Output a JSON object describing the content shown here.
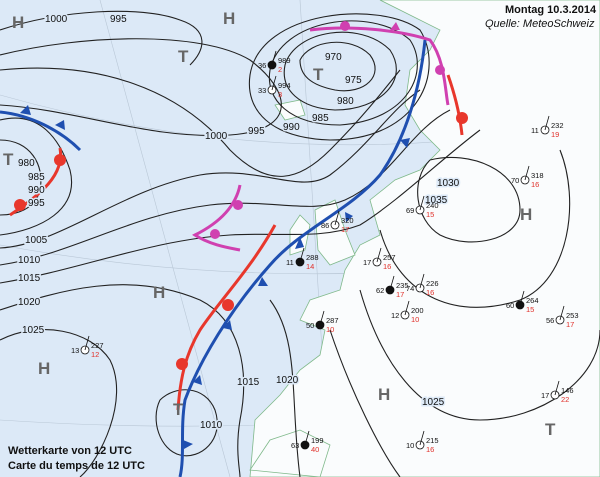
{
  "header": {
    "date": "Montag 10.3.2014",
    "source": "Quelle: MeteoSchweiz"
  },
  "footer": {
    "caption_de": "Wetterkarte von 12 UTC",
    "caption_fr": "Carte du temps de 12 UTC"
  },
  "pressure_centers": [
    "H",
    "T",
    "T",
    "T",
    "H",
    "H",
    "T",
    "H",
    "H",
    "T",
    "H"
  ],
  "isobar_labels": [
    "1000",
    "995",
    "970",
    "975",
    "980",
    "985",
    "990",
    "995",
    "1000",
    "980",
    "985",
    "990",
    "995",
    "1005",
    "1010",
    "1015",
    "1020",
    "1025",
    "1030",
    "1035",
    "1015",
    "1020",
    "1010",
    "1025"
  ],
  "stations": [
    {
      "p": "989",
      "t": "2",
      "w": "36"
    },
    {
      "p": "994",
      "t": "3",
      "w": "33"
    },
    {
      "p": "320",
      "t": "17",
      "w": "86"
    },
    {
      "p": "288",
      "t": "14",
      "w": "11"
    },
    {
      "p": "257",
      "t": "16",
      "w": "17"
    },
    {
      "p": "240",
      "t": "15",
      "w": "69"
    },
    {
      "p": "235",
      "t": "17",
      "w": "62"
    },
    {
      "p": "226",
      "t": "16",
      "w": "74"
    },
    {
      "p": "318",
      "t": "16",
      "w": "70"
    },
    {
      "p": "287",
      "t": "10",
      "w": "50"
    },
    {
      "p": "227",
      "t": "12",
      "w": "13"
    },
    {
      "p": "200",
      "t": "10",
      "w": "12"
    },
    {
      "p": "264",
      "t": "15",
      "w": "60"
    },
    {
      "p": "253",
      "t": "17",
      "w": "56"
    },
    {
      "p": "215",
      "t": "16",
      "w": "10"
    },
    {
      "p": "199",
      "t": "40",
      "w": "63"
    },
    {
      "p": "146",
      "t": "22",
      "w": "17"
    },
    {
      "p": "232",
      "t": "19",
      "w": "11"
    }
  ],
  "colors": {
    "sea": "#dce9f7",
    "land": "#fafcfd",
    "cold_front": "#1f4fb0",
    "warm_front": "#e8372c",
    "occlusion": "#d040b0",
    "coastline": "#7fb98a"
  }
}
